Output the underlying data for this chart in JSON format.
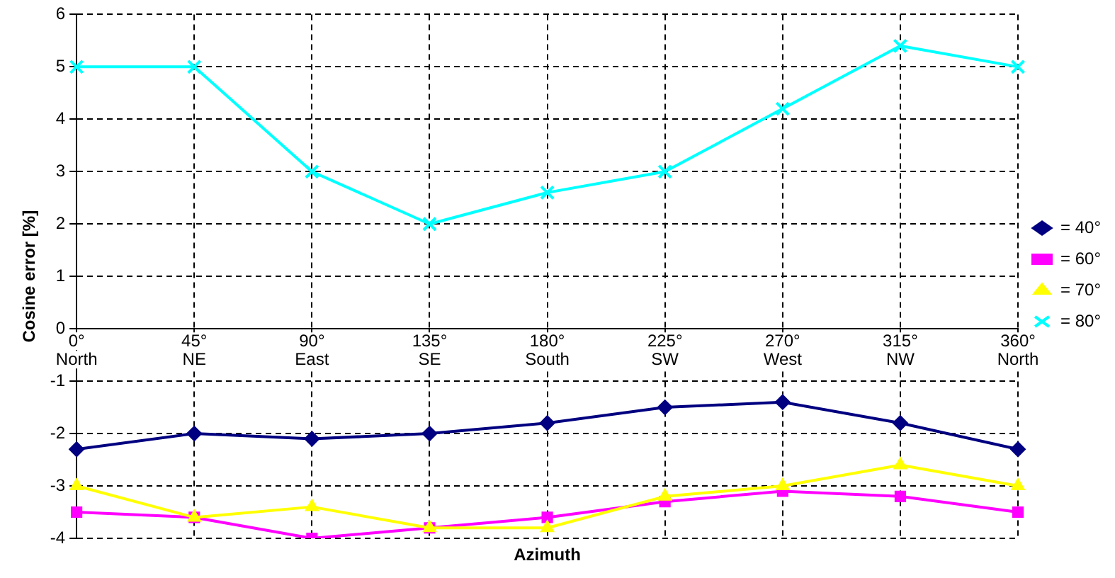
{
  "chart_data": {
    "type": "line",
    "xlabel": "Azimuth",
    "ylabel": "Cosine error [%]",
    "categories": [
      "0°\nNorth",
      "45°\nNE",
      "90°\nEast",
      "135°\nSE",
      "180°\nSouth",
      "225°\nSW",
      "270°\nWest",
      "315°\nNW",
      "360°\nNorth"
    ],
    "series": [
      {
        "name": "= 40°",
        "color": "#000080",
        "marker": "diamond",
        "values": [
          -2.3,
          -2.0,
          -2.1,
          -2.0,
          -1.8,
          -1.5,
          -1.4,
          -1.8,
          -2.3
        ]
      },
      {
        "name": "= 60°",
        "color": "#ff00ff",
        "marker": "square",
        "values": [
          -3.5,
          -3.6,
          -4.0,
          -3.8,
          -3.6,
          -3.3,
          -3.1,
          -3.2,
          -3.5
        ]
      },
      {
        "name": "= 70°",
        "color": "#ffff00",
        "marker": "triangle",
        "values": [
          -3.0,
          -3.6,
          -3.4,
          -3.8,
          -3.8,
          -3.2,
          -3.0,
          -2.6,
          -3.0
        ]
      },
      {
        "name": "= 80°",
        "color": "#00ffff",
        "marker": "cross",
        "values": [
          5,
          5,
          3,
          2,
          2.6,
          3,
          4.2,
          5.4,
          5
        ]
      }
    ],
    "ylim": [
      -4,
      6
    ],
    "yticks": [
      -4,
      -3,
      -2,
      -1,
      0,
      1,
      2,
      3,
      4,
      5,
      6
    ],
    "grid": true,
    "legend": "right",
    "line_style": "solid"
  }
}
